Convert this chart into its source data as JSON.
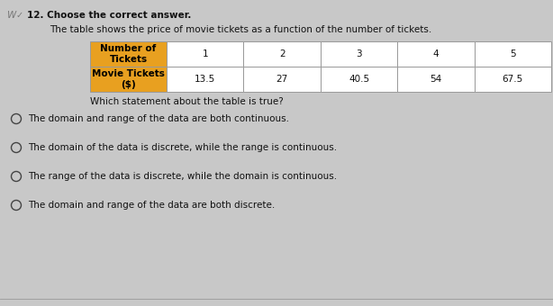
{
  "title_line": "12. Choose the correct answer.",
  "title_prefix_w": "W",
  "title_prefix_check": "✓",
  "subtitle": "The table shows the price of movie tickets as a function of the number of tickets.",
  "table": {
    "row1_header": "Number of\nTickets",
    "row2_header": "Movie Tickets\n($)",
    "row1_data": [
      "1",
      "2",
      "3",
      "4",
      "5"
    ],
    "row2_data": [
      "13.5",
      "27",
      "40.5",
      "54",
      "67.5"
    ],
    "header_bg": "#E8A020",
    "header_text": "#000000",
    "cell_bg": "#FFFFFF",
    "border_color": "#999999"
  },
  "question": "Which statement about the table is true?",
  "options": [
    "The domain and range of the data are both continuous.",
    "The domain of the data is discrete, while the range is continuous.",
    "The range of the data is discrete, while the domain is continuous.",
    "The domain and range of the data are both discrete."
  ],
  "bg_color": "#C8C8C8",
  "text_color": "#111111",
  "font_size_title": 7.5,
  "font_size_subtitle": 7.5,
  "font_size_table": 7.5,
  "font_size_question": 7.5,
  "font_size_options": 7.5
}
